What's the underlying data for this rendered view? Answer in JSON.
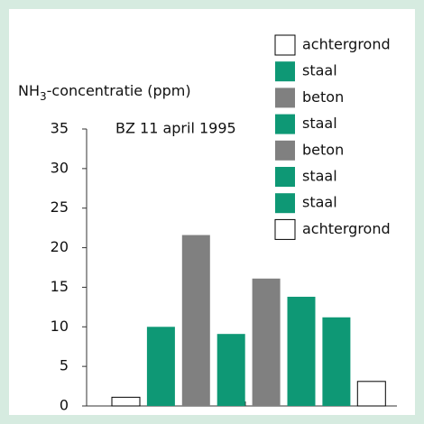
{
  "chart_data": {
    "type": "bar",
    "y_label": {
      "main": "NH",
      "sub": "3",
      "rest": "-concentratie (ppm)"
    },
    "annotation": "BZ 11 april 1995",
    "categories": [
      "achtergrond",
      "staal",
      "beton",
      "staal",
      "beton",
      "staal",
      "staal",
      "achtergrond"
    ],
    "values": [
      1.1,
      10,
      21.6,
      9.1,
      16.1,
      13.8,
      11.2,
      3.1
    ],
    "colors": [
      "#ffffff",
      "#0e9875",
      "#808080",
      "#0e9875",
      "#808080",
      "#0e9875",
      "#0e9875",
      "#ffffff"
    ],
    "ylim": [
      0,
      35
    ],
    "yticks": [
      0,
      5,
      10,
      15,
      20,
      25,
      30,
      35
    ]
  }
}
